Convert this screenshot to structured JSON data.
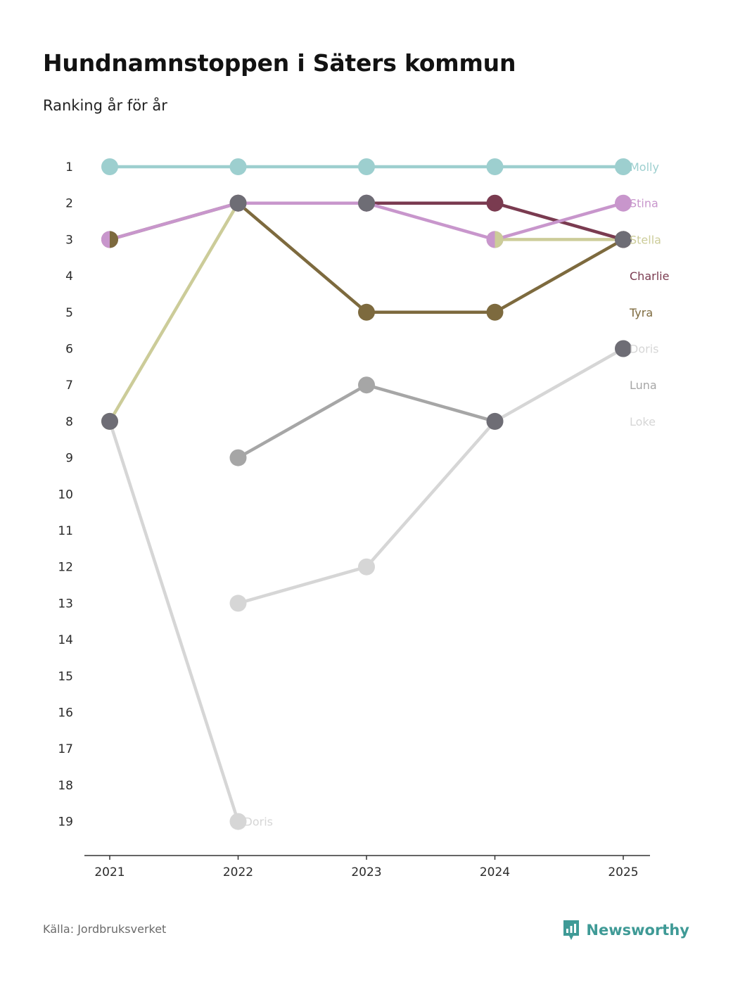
{
  "title": "Hundnamnstoppen i Säters kommun",
  "subtitle": "Ranking år för år",
  "source": "Källa: Jordbruksverket",
  "brand": "Newsworthy",
  "colors": {
    "brand": "#3f9a96",
    "axis": "#333333"
  },
  "chart_data": {
    "type": "line",
    "title": "Hundnamnstoppen i Säters kommun",
    "subtitle": "Ranking år för år",
    "xlabel": "",
    "ylabel": "",
    "categories": [
      "2021",
      "2022",
      "2023",
      "2024",
      "2025"
    ],
    "y_ticks": [
      "1",
      "2",
      "3",
      "4",
      "5",
      "6",
      "7",
      "8",
      "9",
      "10",
      "11",
      "12",
      "13",
      "14",
      "15",
      "16",
      "17",
      "18",
      "19"
    ],
    "ylim": [
      1,
      19
    ],
    "y_inverted": true,
    "series": [
      {
        "name": "Loke",
        "color": "#d6d6d6",
        "values": [
          8,
          19,
          null,
          null,
          null
        ]
      },
      {
        "name": "Luna",
        "color": "#a6a6a6",
        "values": [
          null,
          9,
          7,
          8,
          null
        ]
      },
      {
        "name": "Doris",
        "color": "#d6d6d6",
        "values": [
          null,
          13,
          12,
          8,
          6
        ]
      },
      {
        "name": "Stella",
        "color": "#cccc99",
        "values": [
          8,
          2,
          null,
          3,
          3
        ]
      },
      {
        "name": "Tyra",
        "color": "#7d6a3e",
        "values": [
          3,
          2,
          5,
          5,
          3
        ]
      },
      {
        "name": "Charlie",
        "color": "#7a3b50",
        "values": [
          null,
          null,
          2,
          2,
          3
        ]
      },
      {
        "name": "Stina",
        "color": "#c896cc",
        "values": [
          3,
          2,
          2,
          3,
          2
        ]
      },
      {
        "name": "Molly",
        "color": "#9dcfcf",
        "values": [
          1,
          1,
          1,
          1,
          1
        ]
      }
    ],
    "shared_points": [
      {
        "category": "2021",
        "rank": 3,
        "names": [
          "Stina",
          "Tyra"
        ],
        "style": "split"
      },
      {
        "category": "2021",
        "rank": 8,
        "names": [
          "Stella",
          "Loke"
        ],
        "style": "tie",
        "color": "#6e6d75"
      },
      {
        "category": "2022",
        "rank": 2,
        "names": [
          "Stella",
          "Tyra",
          "Stina"
        ],
        "style": "tie",
        "color": "#6e6d75"
      },
      {
        "category": "2023",
        "rank": 2,
        "names": [
          "Charlie",
          "Stina"
        ],
        "style": "tie",
        "color": "#6e6d75"
      },
      {
        "category": "2024",
        "rank": 3,
        "names": [
          "Stina",
          "Stella"
        ],
        "style": "split"
      },
      {
        "category": "2024",
        "rank": 8,
        "names": [
          "Luna",
          "Doris"
        ],
        "style": "tie",
        "color": "#6e6d75"
      },
      {
        "category": "2025",
        "rank": 3,
        "names": [
          "Stella",
          "Tyra",
          "Charlie"
        ],
        "style": "tie",
        "color": "#6e6d75"
      },
      {
        "category": "2025",
        "rank": 6,
        "names": [
          "Doris"
        ],
        "style": "tie",
        "color": "#6e6d75"
      }
    ],
    "end_labels": [
      {
        "text": "Molly",
        "rank": 1,
        "color": "#9dcfcf"
      },
      {
        "text": "Stina",
        "rank": 2,
        "color": "#c896cc"
      },
      {
        "text": "Stella",
        "rank": 3,
        "color": "#cccc99"
      },
      {
        "text": "Charlie",
        "rank": 4,
        "color": "#7a3b50"
      },
      {
        "text": "Tyra",
        "rank": 5,
        "color": "#7d6a3e"
      },
      {
        "text": "Doris",
        "rank": 6,
        "color": "#d6d6d6"
      },
      {
        "text": "Luna",
        "rank": 7,
        "color": "#a6a6a6"
      },
      {
        "text": "Loke",
        "rank": 8,
        "color": "#d6d6d6"
      }
    ],
    "annotations": [
      {
        "text": "Doris",
        "category": "2022",
        "rank": 19,
        "color": "#d6d6d6"
      }
    ]
  }
}
